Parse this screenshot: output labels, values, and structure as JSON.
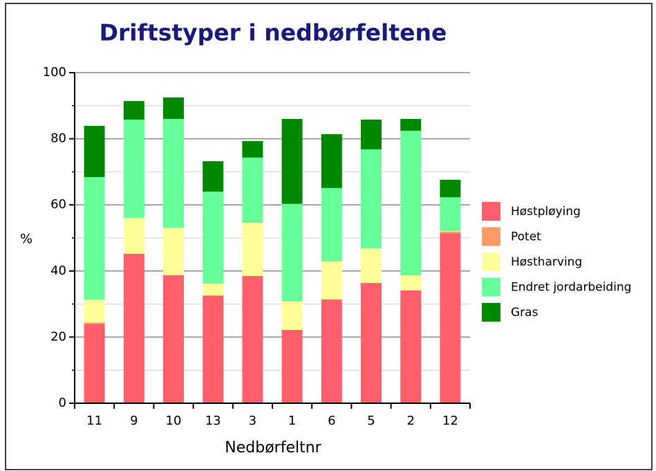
{
  "chart_data": {
    "type": "stacked_bar",
    "title": "Driftstyper i nedbørfeltene",
    "x_label": "Nedbørfeltnr",
    "y_label": "%",
    "categories": [
      "11",
      "9",
      "10",
      "13",
      "3",
      "1",
      "6",
      "5",
      "2",
      "12"
    ],
    "series": [
      {
        "name": "Høstpløying",
        "color": "#ff5f6a",
        "values": [
          24,
          45.2,
          38.7,
          32.6,
          38.5,
          22.2,
          31.4,
          36.4,
          34.1,
          51.5
        ]
      },
      {
        "name": "Potet",
        "color": "#ff9966",
        "values": [
          0.4,
          0,
          0,
          0,
          0,
          0,
          0,
          0,
          0,
          0.4
        ]
      },
      {
        "name": "Høstharving",
        "color": "#ffff99",
        "values": [
          7,
          10.9,
          14.4,
          3.6,
          16.1,
          8.6,
          11.5,
          10.5,
          4.6,
          0.2
        ]
      },
      {
        "name": "Endret jordarbeiding",
        "color": "#66ff99",
        "values": [
          37,
          29.7,
          32.9,
          27.8,
          19.7,
          29.5,
          22.2,
          29.9,
          43.7,
          10.2
        ]
      },
      {
        "name": "Gras",
        "color": "#008800",
        "values": [
          15.5,
          5.6,
          6.5,
          9.2,
          5,
          25.7,
          16.3,
          9,
          3.6,
          5.3
        ]
      }
    ],
    "ylim": [
      0,
      100
    ],
    "yticks": [
      0,
      20,
      40,
      60,
      80,
      100
    ],
    "yticks_minor": [
      10,
      30,
      50,
      70,
      90
    ],
    "grid": true,
    "legend": "right"
  }
}
